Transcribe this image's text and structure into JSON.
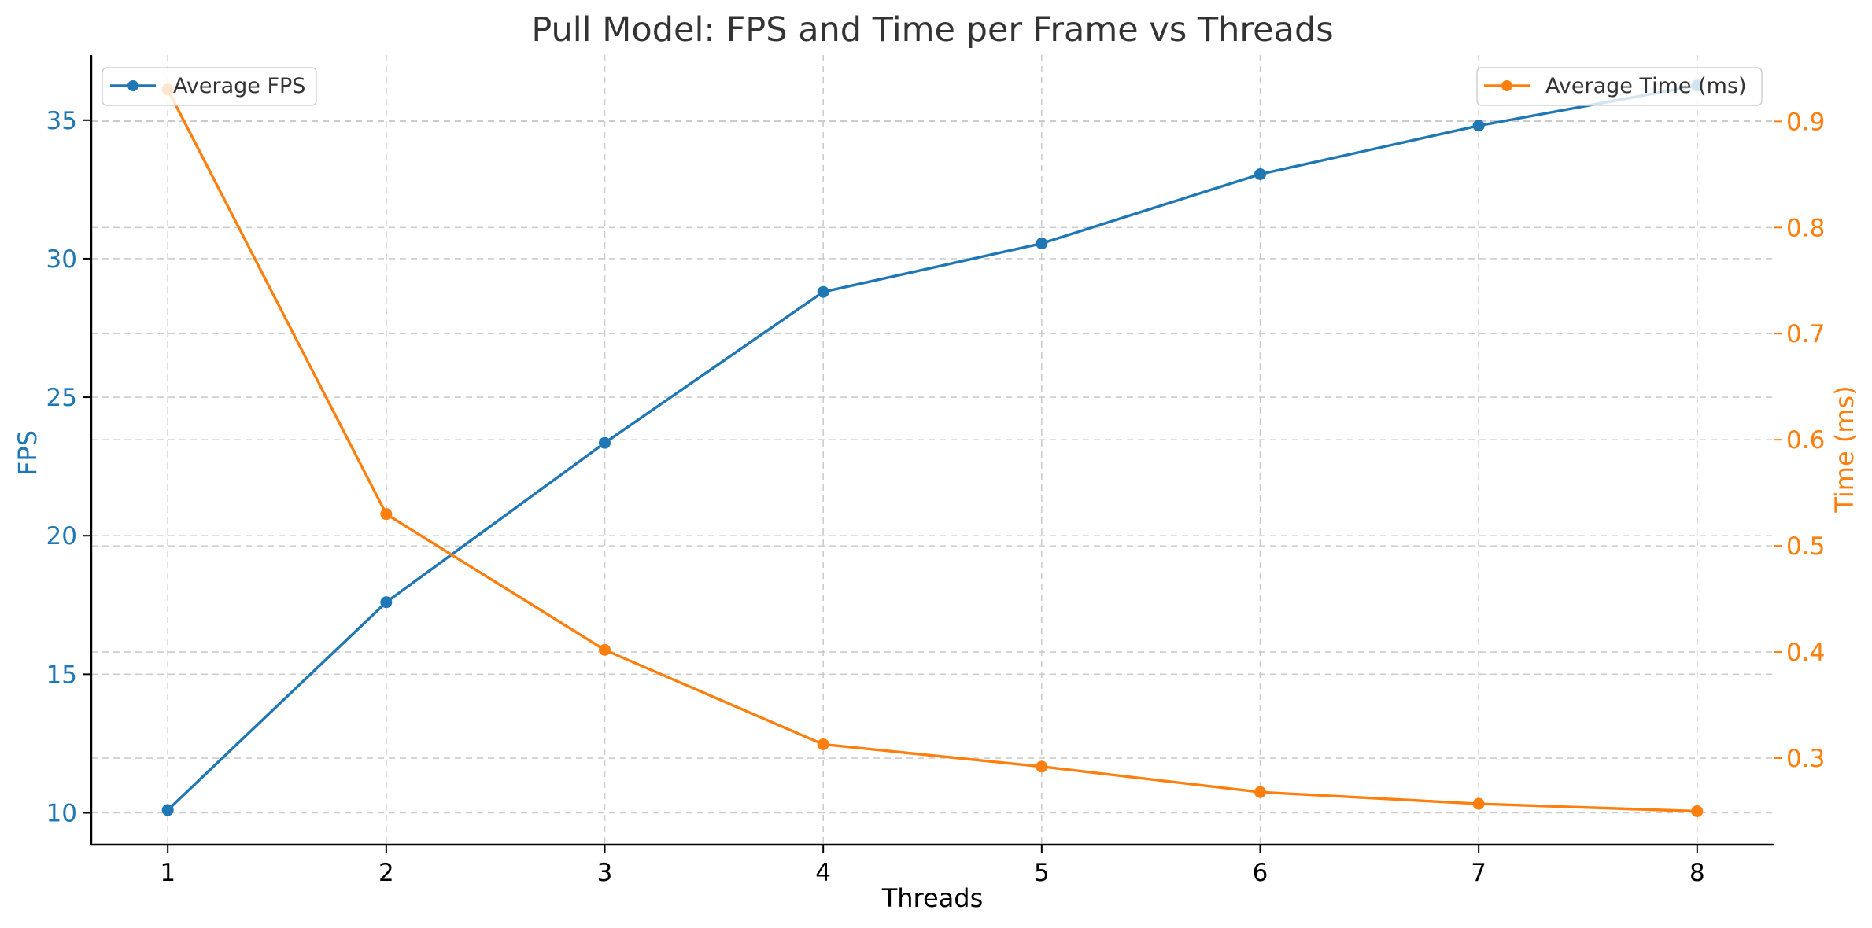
{
  "chart_data": {
    "type": "line",
    "title": "Pull Model: FPS and Time per Frame vs Threads",
    "xlabel": "Threads",
    "ylabel": "FPS",
    "y2label": "Time (ms)",
    "x": [
      1,
      2,
      3,
      4,
      5,
      6,
      7,
      8
    ],
    "xlim": [
      0.65,
      8.35
    ],
    "ylim": [
      8.85,
      37.35
    ],
    "y2lim": [
      0.2185,
      0.9625
    ],
    "xticks": [
      "1",
      "2",
      "3",
      "4",
      "5",
      "6",
      "7",
      "8"
    ],
    "yticks": [
      "10",
      "15",
      "20",
      "25",
      "30",
      "35"
    ],
    "y2ticks": [
      "0.3",
      "0.4",
      "0.5",
      "0.6",
      "0.7",
      "0.8",
      "0.9"
    ],
    "grid": true,
    "series": [
      {
        "name": "Average FPS",
        "axis": "left",
        "color": "#1f77b4",
        "values": [
          10.1,
          17.6,
          23.35,
          28.8,
          30.55,
          33.05,
          34.8,
          36.25
        ],
        "legend": "top-left"
      },
      {
        "name": "Average Time (ms)",
        "axis": "right",
        "color": "#ff7f0e",
        "values": [
          0.93,
          0.53,
          0.402,
          0.313,
          0.292,
          0.268,
          0.257,
          0.25
        ],
        "legend": "top-right"
      }
    ]
  }
}
